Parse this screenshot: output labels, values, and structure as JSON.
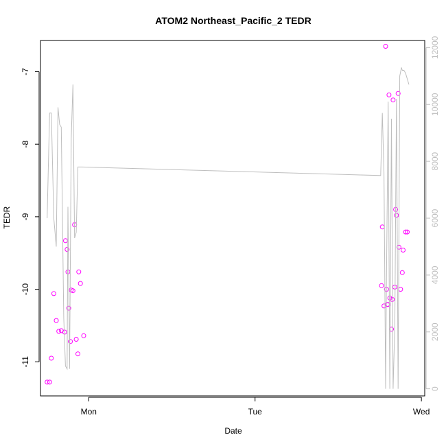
{
  "chart_data": {
    "type": "scatter",
    "title": "ATOM2 Northeast_Pacific_2 TEDR",
    "xlabel": "Date",
    "ylabel": "TEDR",
    "x_ticks": [
      "Mon",
      "Tue",
      "Wed"
    ],
    "y_ticks": [
      "-7",
      "-8",
      "-9",
      "-10",
      "-11"
    ],
    "y_right_ticks": [
      "0",
      "2000",
      "4000",
      "6000",
      "8000",
      "10000",
      "12000"
    ],
    "xlim": [
      -0.29,
      2.02
    ],
    "ylim": [
      -11.47,
      -6.57
    ],
    "y_right_lim": [
      -250,
      12250
    ],
    "grid": false,
    "colors": {
      "points": "#ff00ff",
      "line": "#bebebe",
      "axis": "#000000",
      "right_axis": "#bebebe"
    },
    "series": [
      {
        "kind": "points",
        "x": [
          -0.25,
          -0.235,
          -0.225,
          -0.21,
          -0.195,
          -0.18,
          -0.165,
          -0.145,
          -0.14,
          -0.13,
          -0.125,
          -0.12,
          -0.11,
          -0.105,
          -0.095,
          -0.085,
          -0.075,
          -0.065,
          -0.06,
          -0.05,
          -0.03,
          1.76,
          1.765,
          1.775,
          1.785,
          1.79,
          1.795,
          1.8,
          1.805,
          1.81,
          1.82,
          1.825,
          1.83,
          1.84,
          1.845,
          1.85,
          1.86,
          1.865,
          1.875,
          1.885,
          1.89,
          1.905,
          1.915
        ],
        "y": [
          -11.28,
          -11.28,
          -10.95,
          -10.06,
          -10.43,
          -10.58,
          -10.57,
          -10.59,
          -9.33,
          -9.45,
          -9.76,
          -10.26,
          -10.72,
          -10.01,
          -10.02,
          -9.11,
          -10.69,
          -10.89,
          -9.76,
          -9.92,
          -10.64,
          -9.95,
          -9.14,
          -10.23,
          -6.65,
          -10,
          -10.21,
          -10.21,
          -7.32,
          -10.12,
          -10.55,
          -10.14,
          -7.39,
          -9.97,
          -8.9,
          -8.98,
          -7.3,
          -9.42,
          -10,
          -9.77,
          -9.46,
          -9.21,
          -9.21
        ]
      },
      {
        "kind": "line",
        "axis": "right",
        "x": [
          -0.25,
          -0.235,
          -0.225,
          -0.21,
          -0.195,
          -0.185,
          -0.175,
          -0.165,
          -0.15,
          -0.14,
          -0.13,
          -0.125,
          -0.115,
          -0.105,
          -0.095,
          -0.085,
          -0.075,
          -0.065,
          -0.055,
          -0.045,
          -0.04,
          1.755,
          1.765,
          1.775,
          1.785,
          1.79,
          1.8,
          1.81,
          1.82,
          1.83,
          1.84,
          1.85,
          1.86,
          1.87,
          1.88,
          1.885,
          1.895,
          1.905,
          1.915,
          1.925
        ],
        "y": [
          6000,
          9700,
          9700,
          6000,
          5000,
          9900,
          9300,
          9200,
          2500,
          800,
          700,
          6400,
          700,
          8800,
          10700,
          5300,
          5500,
          7800,
          7800,
          7800,
          7800,
          7500,
          9700,
          7600,
          0,
          3700,
          10100,
          0,
          9500,
          0,
          2200,
          10200,
          0,
          11000,
          11300,
          11200,
          11200,
          11100,
          10900,
          10700
        ]
      }
    ]
  }
}
